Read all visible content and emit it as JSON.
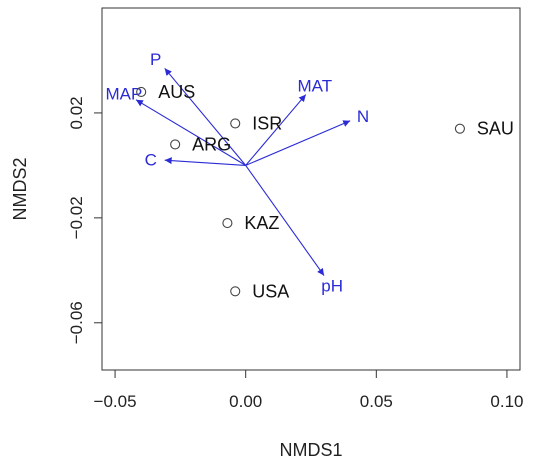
{
  "chart_data": {
    "type": "scatter",
    "title": "",
    "xlabel": "NMDS1",
    "ylabel": "NMDS2",
    "xlim": [
      -0.055,
      0.105
    ],
    "ylim": [
      -0.078,
      0.06
    ],
    "x_ticks": [
      {
        "value": -0.05,
        "label": "−0.05"
      },
      {
        "value": 0.0,
        "label": "0.00"
      },
      {
        "value": 0.05,
        "label": "0.05"
      },
      {
        "value": 0.1,
        "label": "0.10"
      }
    ],
    "y_ticks": [
      {
        "value": -0.06,
        "label": "−0.06"
      },
      {
        "value": -0.02,
        "label": "−0.02"
      },
      {
        "value": 0.02,
        "label": "0.02"
      }
    ],
    "grid": false,
    "points": [
      {
        "label": "AUS",
        "x": -0.04,
        "y": 0.028
      },
      {
        "label": "ISR",
        "x": -0.004,
        "y": 0.016
      },
      {
        "label": "ARG",
        "x": -0.027,
        "y": 0.008
      },
      {
        "label": "SAU",
        "x": 0.082,
        "y": 0.014
      },
      {
        "label": "KAZ",
        "x": -0.007,
        "y": -0.022
      },
      {
        "label": "USA",
        "x": -0.004,
        "y": -0.048
      }
    ],
    "vectors": [
      {
        "label": "P",
        "x": -0.031,
        "y": 0.037
      },
      {
        "label": "MAP",
        "x": -0.042,
        "y": 0.025
      },
      {
        "label": "MAT",
        "x": 0.023,
        "y": 0.027
      },
      {
        "label": "N",
        "x": 0.04,
        "y": 0.017
      },
      {
        "label": "C",
        "x": -0.031,
        "y": 0.002
      },
      {
        "label": "pH",
        "x": 0.03,
        "y": -0.042
      }
    ],
    "vector_color": "#2b2bd6",
    "point_color": "#444444"
  }
}
